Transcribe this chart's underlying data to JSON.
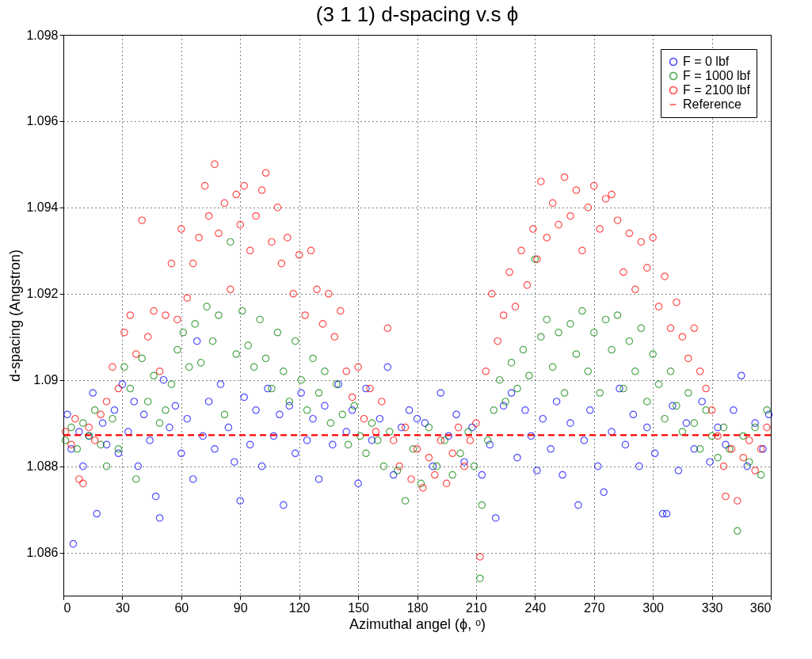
{
  "chart_data": {
    "type": "scatter",
    "title": "(3  1  1) d-spacing v.s ϕ",
    "xlabel": "Azimuthal angel (ϕ, ᵒ)",
    "ylabel": "d-spacing (Angstron)",
    "xlim": [
      0,
      360
    ],
    "xticks": [
      0,
      30,
      60,
      90,
      120,
      150,
      180,
      210,
      240,
      270,
      300,
      330,
      360
    ],
    "ylim": [
      1.085,
      1.098
    ],
    "yticks": [
      1.086,
      1.088,
      1.09,
      1.092,
      1.094,
      1.096,
      1.098
    ],
    "grid": true,
    "legend": "top right",
    "marker": "circle",
    "ref_lines": [
      {
        "axis": "y",
        "value": 1.08872,
        "label": "Reference",
        "color": "#ff0000",
        "line_style": "dashed"
      }
    ],
    "series": [
      {
        "name": "F = 0 lbf",
        "color": "#0000ff",
        "x": [
          2,
          4,
          5,
          8,
          10,
          13,
          15,
          17,
          20,
          22,
          26,
          28,
          30,
          33,
          36,
          38,
          41,
          44,
          47,
          49,
          51,
          54,
          57,
          60,
          63,
          66,
          68,
          71,
          74,
          77,
          80,
          84,
          87,
          90,
          92,
          95,
          98,
          101,
          104,
          107,
          110,
          112,
          115,
          118,
          121,
          124,
          127,
          130,
          133,
          137,
          140,
          144,
          147,
          150,
          154,
          157,
          161,
          165,
          168,
          172,
          176,
          180,
          184,
          188,
          192,
          196,
          200,
          204,
          208,
          213,
          217,
          220,
          224,
          228,
          231,
          235,
          238,
          241,
          244,
          248,
          251,
          254,
          258,
          262,
          265,
          268,
          272,
          275,
          279,
          283,
          286,
          290,
          293,
          297,
          301,
          305,
          307,
          310,
          313,
          317,
          321,
          325,
          329,
          333,
          337,
          341,
          345,
          348,
          352,
          356,
          359
        ],
        "values": [
          1.0892,
          1.0884,
          1.0862,
          1.0888,
          1.088,
          1.0887,
          1.0897,
          1.0869,
          1.089,
          1.0885,
          1.0893,
          1.0883,
          1.0899,
          1.0888,
          1.0895,
          1.088,
          1.0892,
          1.0886,
          1.0873,
          1.0868,
          1.09,
          1.0889,
          1.0894,
          1.0883,
          1.0891,
          1.0877,
          1.0909,
          1.0887,
          1.0895,
          1.0884,
          1.0899,
          1.0889,
          1.0881,
          1.0872,
          1.0896,
          1.0885,
          1.0893,
          1.088,
          1.0898,
          1.0887,
          1.0892,
          1.0871,
          1.0894,
          1.0883,
          1.0897,
          1.0886,
          1.0891,
          1.0877,
          1.0894,
          1.0885,
          1.0899,
          1.0888,
          1.0893,
          1.0876,
          1.0898,
          1.0886,
          1.0891,
          1.0903,
          1.0878,
          1.0889,
          1.0893,
          1.0891,
          1.089,
          1.088,
          1.0897,
          1.0887,
          1.0892,
          1.0881,
          1.0889,
          1.0878,
          1.0885,
          1.0868,
          1.0894,
          1.0897,
          1.0882,
          1.0893,
          1.0887,
          1.0879,
          1.0891,
          1.0884,
          1.0895,
          1.0878,
          1.089,
          1.0871,
          1.0886,
          1.0893,
          1.088,
          1.0874,
          1.0888,
          1.0898,
          1.0885,
          1.0892,
          1.088,
          1.0889,
          1.0883,
          1.0869,
          1.0869,
          1.0894,
          1.0879,
          1.089,
          1.0884,
          1.0895,
          1.0881,
          1.0889,
          1.0885,
          1.0893,
          1.0901,
          1.088,
          1.089,
          1.0884,
          1.0892
        ]
      },
      {
        "name": "F = 1000 lbf",
        "color": "#008000",
        "x": [
          1,
          4,
          7,
          10,
          13,
          16,
          19,
          22,
          25,
          28,
          31,
          34,
          37,
          40,
          43,
          46,
          49,
          52,
          55,
          58,
          61,
          64,
          67,
          70,
          73,
          76,
          79,
          82,
          85,
          88,
          91,
          94,
          97,
          100,
          103,
          106,
          109,
          112,
          115,
          118,
          121,
          124,
          127,
          130,
          133,
          136,
          139,
          142,
          145,
          148,
          151,
          154,
          157,
          160,
          163,
          166,
          170,
          174,
          178,
          182,
          186,
          190,
          194,
          198,
          202,
          206,
          209,
          212,
          213,
          216,
          219,
          222,
          225,
          228,
          231,
          234,
          237,
          240,
          243,
          246,
          249,
          252,
          255,
          258,
          261,
          264,
          267,
          270,
          273,
          276,
          279,
          282,
          285,
          288,
          291,
          294,
          297,
          300,
          303,
          306,
          309,
          312,
          315,
          318,
          321,
          324,
          327,
          330,
          333,
          336,
          339,
          343,
          346,
          349,
          352,
          355,
          358
        ],
        "values": [
          1.0886,
          1.0889,
          1.0884,
          1.089,
          1.0887,
          1.0893,
          1.0885,
          1.088,
          1.0891,
          1.0884,
          1.0903,
          1.0898,
          1.0877,
          1.0905,
          1.0895,
          1.0901,
          1.089,
          1.0893,
          1.0899,
          1.0907,
          1.0911,
          1.0903,
          1.0913,
          1.0904,
          1.0917,
          1.0909,
          1.0915,
          1.0892,
          1.0932,
          1.0906,
          1.0916,
          1.0908,
          1.0903,
          1.0914,
          1.0905,
          1.0898,
          1.0911,
          1.0902,
          1.0895,
          1.0909,
          1.09,
          1.0893,
          1.0905,
          1.0897,
          1.0902,
          1.089,
          1.0899,
          1.0892,
          1.0885,
          1.0894,
          1.0887,
          1.0883,
          1.089,
          1.0886,
          1.088,
          1.0888,
          1.0879,
          1.0872,
          1.0884,
          1.0876,
          1.0889,
          1.088,
          1.0886,
          1.0878,
          1.0883,
          1.0888,
          1.088,
          1.0854,
          1.0871,
          1.0886,
          1.0893,
          1.09,
          1.0895,
          1.0904,
          1.0898,
          1.0907,
          1.0901,
          1.0928,
          1.091,
          1.0914,
          1.0903,
          1.0911,
          1.0897,
          1.0913,
          1.0906,
          1.0916,
          1.0902,
          1.0911,
          1.0897,
          1.0914,
          1.0907,
          1.0915,
          1.0898,
          1.0909,
          1.0902,
          1.0912,
          1.0895,
          1.0906,
          1.0899,
          1.0891,
          1.0902,
          1.0894,
          1.0888,
          1.0897,
          1.089,
          1.0884,
          1.0893,
          1.0887,
          1.0882,
          1.0889,
          1.0884,
          1.0865,
          1.0887,
          1.0881,
          1.0889,
          1.0878,
          1.0893
        ]
      },
      {
        "name": "F = 2100 lbf",
        "color": "#ff0000",
        "x": [
          1,
          4,
          6,
          8,
          10,
          13,
          16,
          19,
          22,
          25,
          28,
          31,
          34,
          37,
          40,
          43,
          46,
          49,
          52,
          55,
          58,
          60,
          63,
          66,
          69,
          72,
          74,
          77,
          79,
          82,
          85,
          88,
          90,
          92,
          95,
          98,
          101,
          103,
          106,
          109,
          111,
          114,
          117,
          120,
          123,
          126,
          129,
          132,
          135,
          138,
          141,
          144,
          147,
          150,
          153,
          156,
          159,
          162,
          165,
          168,
          171,
          174,
          177,
          180,
          183,
          186,
          189,
          192,
          195,
          198,
          201,
          204,
          207,
          210,
          212,
          215,
          218,
          221,
          224,
          227,
          230,
          233,
          236,
          239,
          241,
          243,
          246,
          249,
          252,
          255,
          258,
          261,
          264,
          267,
          270,
          273,
          276,
          279,
          282,
          285,
          288,
          291,
          294,
          297,
          300,
          303,
          306,
          309,
          312,
          315,
          318,
          321,
          324,
          327,
          330,
          333,
          336,
          337,
          340,
          343,
          346,
          349,
          352,
          355,
          358
        ],
        "values": [
          1.0888,
          1.0885,
          1.0891,
          1.0877,
          1.0876,
          1.0889,
          1.0886,
          1.0892,
          1.0895,
          1.0903,
          1.0898,
          1.0911,
          1.0915,
          1.0906,
          1.0937,
          1.091,
          1.0916,
          1.0902,
          1.0915,
          1.0927,
          1.0914,
          1.0935,
          1.0919,
          1.0927,
          1.0933,
          1.0945,
          1.0938,
          1.095,
          1.0934,
          1.0941,
          1.0921,
          1.0943,
          1.0936,
          1.0945,
          1.093,
          1.0938,
          1.0944,
          1.0948,
          1.0932,
          1.094,
          1.0927,
          1.0933,
          1.092,
          1.0929,
          1.0915,
          1.093,
          1.0921,
          1.0913,
          1.092,
          1.091,
          1.0916,
          1.0902,
          1.0896,
          1.0903,
          1.0891,
          1.0898,
          1.0888,
          1.0895,
          1.0912,
          1.0886,
          1.088,
          1.0889,
          1.0877,
          1.0884,
          1.0875,
          1.0882,
          1.0878,
          1.0886,
          1.0876,
          1.0883,
          1.0889,
          1.088,
          1.0886,
          1.089,
          1.0859,
          1.0902,
          1.092,
          1.0909,
          1.0915,
          1.0925,
          1.0917,
          1.093,
          1.0922,
          1.0935,
          1.0928,
          1.0946,
          1.0933,
          1.0941,
          1.0936,
          1.0947,
          1.0938,
          1.0944,
          1.093,
          1.094,
          1.0945,
          1.0935,
          1.0942,
          1.0943,
          1.0937,
          1.0925,
          1.0934,
          1.0921,
          1.0932,
          1.0926,
          1.0933,
          1.0917,
          1.0924,
          1.0912,
          1.0918,
          1.091,
          1.0905,
          1.0912,
          1.0902,
          1.0898,
          1.0893,
          1.0887,
          1.088,
          1.0873,
          1.0884,
          1.0872,
          1.0882,
          1.0886,
          1.0879,
          1.0884,
          1.0889
        ]
      }
    ]
  }
}
